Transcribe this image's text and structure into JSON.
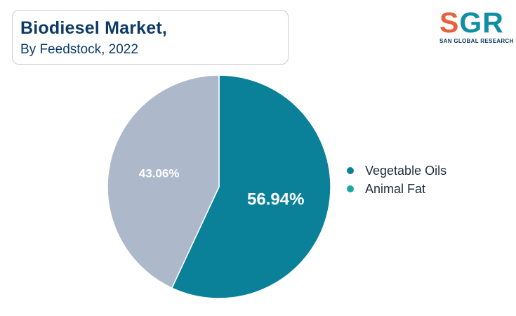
{
  "header": {
    "title": "Biodiesel Market,",
    "subtitle": "By Feedstock, 2022"
  },
  "logo": {
    "letter_s": "S",
    "letters_gr": "GR",
    "tagline": "SAN GLOBAL RESEARCH",
    "colors": {
      "s": "#e8613c",
      "gr": "#0f8fa3"
    }
  },
  "chart_data": {
    "type": "pie",
    "title": "Biodiesel Market, By Feedstock, 2022",
    "unit": "%",
    "slices": [
      {
        "name": "Vegetable Oils",
        "value": 56.94,
        "label": "56.94%",
        "color": "#0a8198"
      },
      {
        "name": "Animal Fat",
        "value": 43.06,
        "label": "43.06%",
        "color": "#adb8ca"
      }
    ],
    "legend": {
      "placement": "right",
      "entries": [
        {
          "name": "Vegetable Oils",
          "color": "#0a8198"
        },
        {
          "name": "Animal Fat",
          "color": "#1aa8a3"
        }
      ]
    }
  }
}
